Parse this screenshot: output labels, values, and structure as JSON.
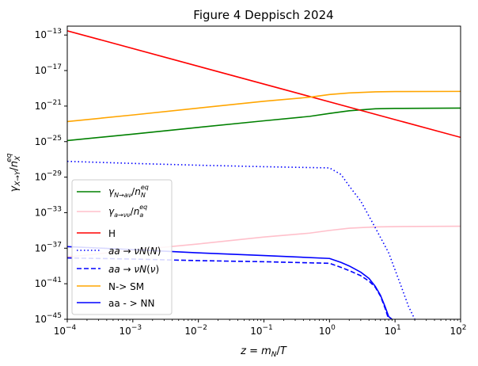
{
  "chart_data": {
    "type": "line",
    "title": "Figure 4 Deppisch 2024",
    "xlabel": "z = m_N/T",
    "ylabel": "γ_{X→Y}/n_X^{eq}",
    "x_scale": "log",
    "y_scale": "log",
    "xlim": [
      0.0001,
      100
    ],
    "ylim": [
      1e-45,
      1e-12
    ],
    "grid": false,
    "legend_position": "lower-left",
    "x_ticks": [
      {
        "value": 0.0001,
        "base": "10",
        "exp": "−4"
      },
      {
        "value": 0.001,
        "base": "10",
        "exp": "−3"
      },
      {
        "value": 0.01,
        "base": "10",
        "exp": "−2"
      },
      {
        "value": 0.1,
        "base": "10",
        "exp": "−1"
      },
      {
        "value": 1,
        "base": "10",
        "exp": "0"
      },
      {
        "value": 10,
        "base": "10",
        "exp": "1"
      },
      {
        "value": 100,
        "base": "10",
        "exp": "2"
      }
    ],
    "y_ticks": [
      {
        "value": 1e-13,
        "base": "10",
        "exp": "−13"
      },
      {
        "value": 1e-17,
        "base": "10",
        "exp": "−17"
      },
      {
        "value": 1e-21,
        "base": "10",
        "exp": "−21"
      },
      {
        "value": 1e-25,
        "base": "10",
        "exp": "−25"
      },
      {
        "value": 1e-29,
        "base": "10",
        "exp": "−29"
      },
      {
        "value": 1e-33,
        "base": "10",
        "exp": "−33"
      },
      {
        "value": 1e-37,
        "base": "10",
        "exp": "−37"
      },
      {
        "value": 1e-41,
        "base": "10",
        "exp": "−41"
      },
      {
        "value": 1e-45,
        "base": "10",
        "exp": "−45"
      }
    ],
    "series": [
      {
        "name": "γ_{N→aν}/n_N^{eq}",
        "color": "#008000",
        "style": "solid",
        "x": [
          0.0001,
          0.001,
          0.01,
          0.1,
          0.5,
          1,
          2,
          5,
          10,
          100
        ],
        "y": [
          1.3e-25,
          7e-25,
          4e-24,
          2.2e-23,
          7e-23,
          1.5e-22,
          3e-22,
          5e-22,
          5.5e-22,
          6e-22
        ]
      },
      {
        "name": "γ_{a→νν}/n_a^{eq}",
        "color": "#ffc0cb",
        "style": "solid",
        "x": [
          0.0001,
          0.001,
          0.01,
          0.1,
          0.5,
          1,
          2,
          5,
          10,
          100
        ],
        "y": [
          1e-38,
          6e-38,
          3e-37,
          1.8e-36,
          5e-36,
          1e-35,
          1.8e-35,
          2.5e-35,
          2.7e-35,
          3e-35
        ]
      },
      {
        "name": "H",
        "color": "#ff0000",
        "style": "solid",
        "x": [
          0.0001,
          100
        ],
        "y": [
          3e-13,
          3e-25
        ]
      },
      {
        "name": "aa→νN(N)",
        "color": "#0000ff",
        "style": "dotted",
        "x": [
          0.0001,
          0.001,
          0.01,
          0.1,
          0.5,
          1,
          1.5,
          2,
          3,
          5,
          8,
          12,
          16,
          20
        ],
        "y": [
          6e-28,
          3.5e-28,
          2.2e-28,
          1.5e-28,
          1.2e-28,
          1.1e-28,
          2e-29,
          1e-30,
          2e-32,
          2e-35,
          3e-38,
          1e-41,
          3e-44,
          1e-45
        ]
      },
      {
        "name": "aa→νN(ν)",
        "color": "#0000ff",
        "style": "dashed",
        "x": [
          0.0001,
          0.001,
          0.01,
          0.1,
          1,
          1.5,
          2,
          3,
          4,
          5,
          6,
          7,
          8
        ],
        "y": [
          8e-39,
          6e-39,
          4e-39,
          3e-39,
          2e-39,
          7e-40,
          3e-40,
          8e-41,
          2e-41,
          4e-42,
          4e-43,
          2e-44,
          1e-45
        ]
      },
      {
        "name": "N-> SM",
        "color": "#ffa500",
        "style": "solid",
        "x": [
          0.0001,
          0.001,
          0.01,
          0.1,
          0.5,
          1,
          2,
          5,
          10,
          100
        ],
        "y": [
          1.8e-23,
          1e-22,
          6e-22,
          3.5e-21,
          1e-20,
          2e-20,
          3e-20,
          4e-20,
          4.3e-20,
          4.5e-20
        ]
      },
      {
        "name": "aa - > NN",
        "color": "#0000ff",
        "style": "solid",
        "x": [
          0.0001,
          0.001,
          0.01,
          0.1,
          1,
          1.5,
          2,
          3,
          4,
          5,
          6,
          7,
          8,
          9
        ],
        "y": [
          1.5e-37,
          7e-38,
          3e-38,
          1.5e-38,
          7e-39,
          2.5e-39,
          1e-39,
          2e-40,
          4e-41,
          5e-42,
          5e-43,
          3e-44,
          2e-45,
          1e-45
        ]
      }
    ]
  }
}
